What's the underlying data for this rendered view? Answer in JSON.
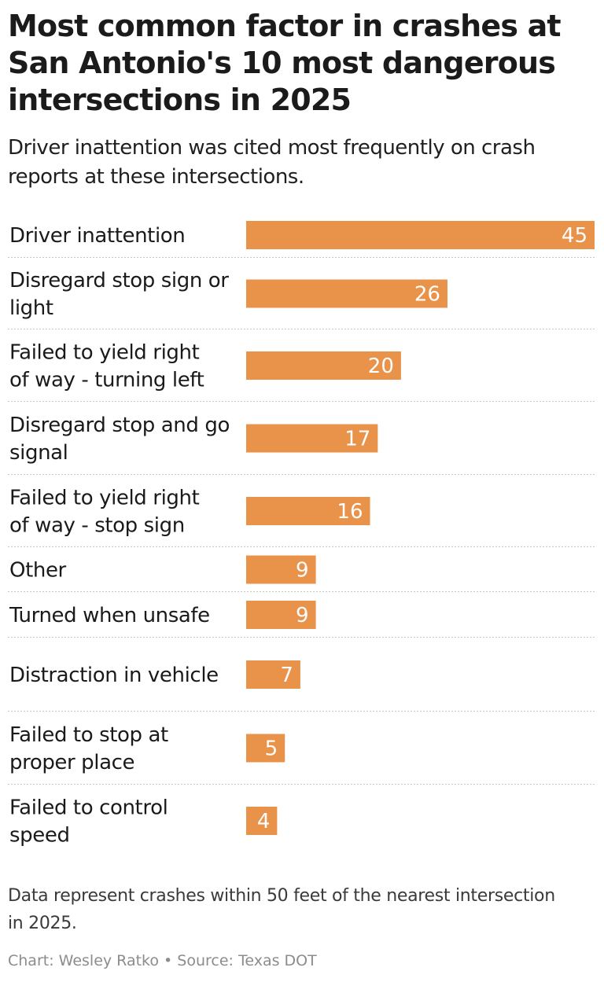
{
  "chart_data": {
    "type": "bar",
    "orientation": "horizontal",
    "title": "Most common factor in crashes at San Antonio's 10 most dangerous intersections in 2025",
    "subtitle": "Driver inattention was cited most frequently on crash reports at these intersections.",
    "categories": [
      "Driver inattention",
      "Disregard stop sign or light",
      "Failed to yield right of way - turning left",
      "Disregard stop and go signal",
      "Failed to yield right of way - stop sign",
      "Other",
      "Turned when unsafe",
      "Distraction in vehicle",
      "Failed to stop at proper place",
      "Failed to control speed"
    ],
    "values": [
      45,
      26,
      20,
      17,
      16,
      9,
      9,
      7,
      5,
      4
    ],
    "xlim": [
      0,
      45
    ],
    "bar_color": "#e8924a",
    "data_labels": true,
    "grid": false,
    "note": "Data represent crashes within 50 feet of the nearest intersection in 2025.",
    "credits": "Chart: Wesley Ratko • Source: Texas DOT"
  }
}
